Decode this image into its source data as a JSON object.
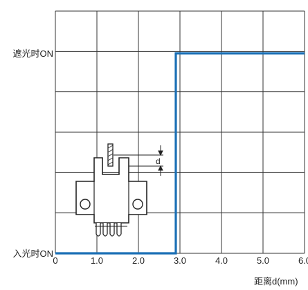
{
  "chart_data": {
    "type": "line",
    "ylabel_ticks": [
      "遮光时ON",
      "入光时ON"
    ],
    "x_ticks": [
      "0",
      "1.0",
      "2.0",
      "3.0",
      "4.0",
      "5.0",
      "6.0"
    ],
    "xlabel": "距离d(mm)",
    "xlim": [
      0,
      6.0
    ],
    "ylim": [
      0,
      1
    ],
    "grid": true,
    "series": [
      {
        "color": "#1a6fb5",
        "x": [
          0,
          2.9,
          2.9,
          6.0
        ],
        "y": [
          0,
          0,
          1,
          1
        ]
      }
    ],
    "inset": {
      "dimension_label": "d",
      "type": "slot-sensor-diagram"
    }
  }
}
